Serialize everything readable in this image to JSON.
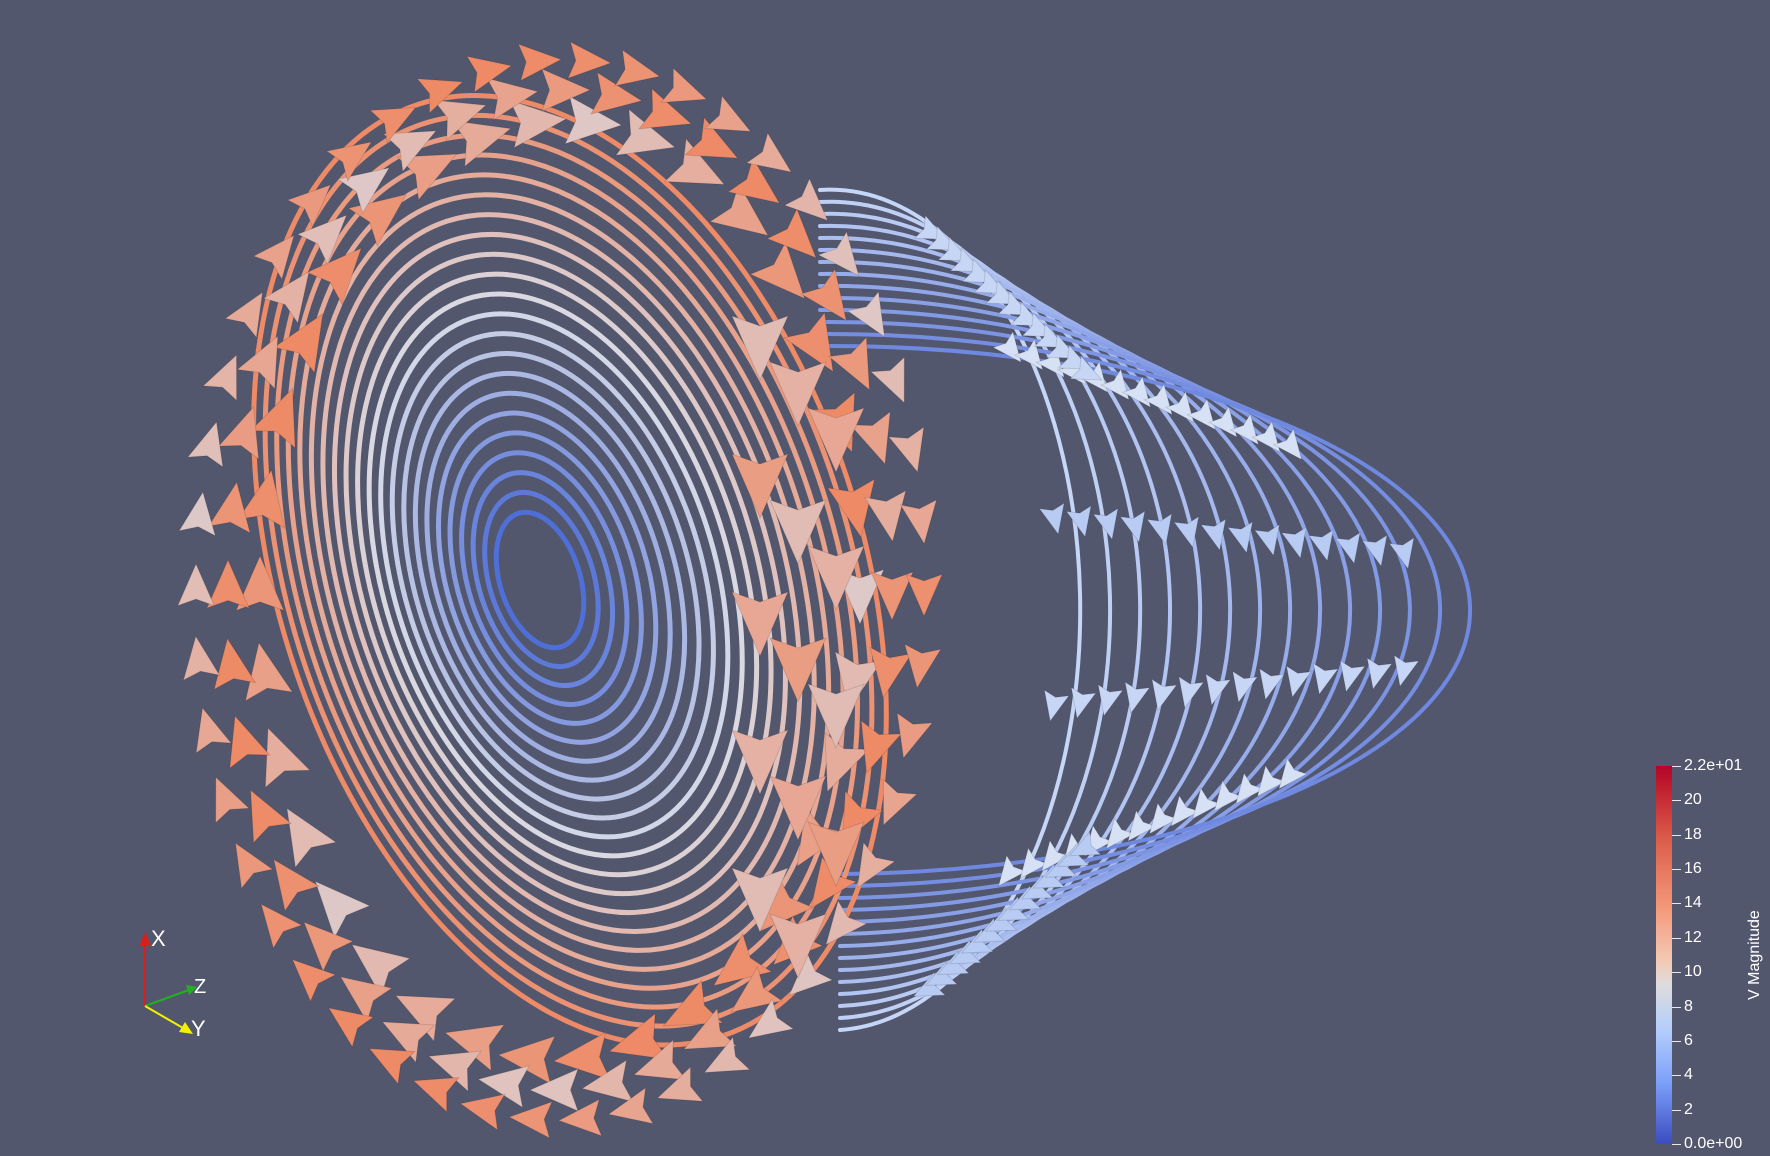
{
  "render": {
    "background": "#52576e",
    "colormap": "Cool to Warm",
    "colors": {
      "low": "#3b4cc0",
      "mid": "#dddcdc",
      "high": "#b40426",
      "warm_glyph": "#f0916c",
      "cool_glyph": "#c9d8f5"
    },
    "subject": "streamline-tubes-with-cone-glyphs"
  },
  "orientation_axes": {
    "labels": {
      "x": "X",
      "y": "Y",
      "z": "Z"
    },
    "colors": {
      "x": "#d81e1e",
      "y": "#f2f200",
      "z": "#22b022"
    }
  },
  "colorbar": {
    "title": "V Magnitude",
    "range": [
      0,
      22
    ],
    "max_label": "2.2e+01",
    "min_label": "0.0e+00",
    "ticks": [
      {
        "value": 22,
        "label": "2.2e+01"
      },
      {
        "value": 20,
        "label": "20"
      },
      {
        "value": 18,
        "label": "18"
      },
      {
        "value": 16,
        "label": "16"
      },
      {
        "value": 14,
        "label": "14"
      },
      {
        "value": 12,
        "label": "12"
      },
      {
        "value": 10,
        "label": "10"
      },
      {
        "value": 8,
        "label": "8"
      },
      {
        "value": 6,
        "label": "6"
      },
      {
        "value": 4,
        "label": "4"
      },
      {
        "value": 2,
        "label": "2"
      },
      {
        "value": 0,
        "label": "0.0e+00"
      }
    ]
  }
}
